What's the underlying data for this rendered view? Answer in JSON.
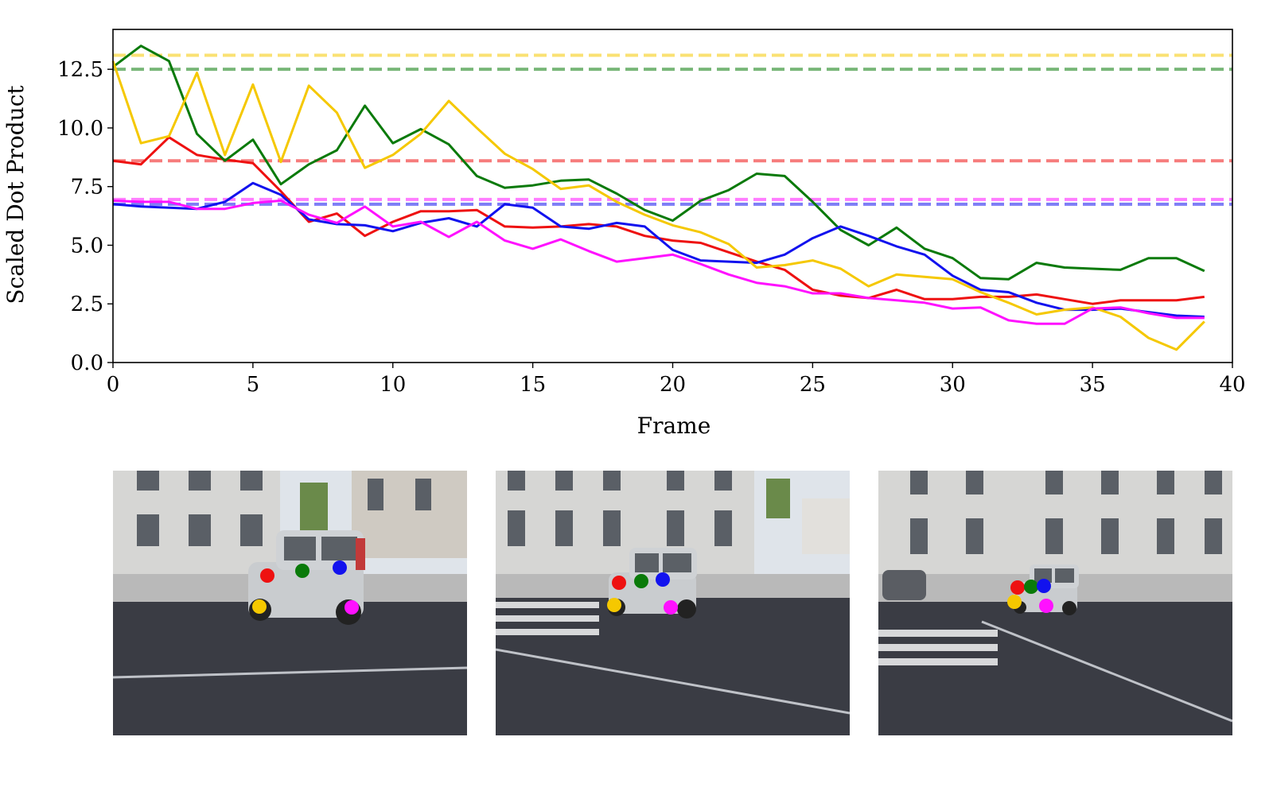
{
  "chart_data": {
    "type": "line",
    "title": "",
    "xlabel": "Frame",
    "ylabel": "Scaled Dot Product",
    "xlim": [
      0,
      40
    ],
    "ylim": [
      0,
      14.2
    ],
    "xticks": [
      0,
      5,
      10,
      15,
      20,
      25,
      30,
      35,
      40
    ],
    "xtick_labels": [
      "0",
      "5",
      "10",
      "15",
      "20",
      "25",
      "30",
      "35",
      "40"
    ],
    "yticks": [
      0,
      2.5,
      5,
      7.5,
      10,
      12.5
    ],
    "ytick_labels": [
      "0.0",
      "2.5",
      "5.0",
      "7.5",
      "10.0",
      "12.5"
    ],
    "grid": false,
    "x": [
      0,
      1,
      2,
      3,
      4,
      5,
      6,
      7,
      8,
      9,
      10,
      11,
      12,
      13,
      14,
      15,
      16,
      17,
      18,
      19,
      20,
      21,
      22,
      23,
      24,
      25,
      26,
      27,
      28,
      29,
      30,
      31,
      32,
      33,
      34,
      35,
      36,
      37,
      38,
      39
    ],
    "series": [
      {
        "name": "red",
        "color": "#ee1111",
        "values": [
          8.6,
          8.45,
          9.6,
          8.85,
          8.65,
          8.5,
          7.3,
          6.0,
          6.35,
          5.4,
          6.0,
          6.45,
          6.45,
          6.5,
          5.8,
          5.75,
          5.8,
          5.9,
          5.8,
          5.4,
          5.2,
          5.1,
          4.7,
          4.3,
          3.95,
          3.1,
          2.85,
          2.75,
          3.1,
          2.7,
          2.7,
          2.8,
          2.8,
          2.9,
          2.7,
          2.5,
          2.65,
          2.65,
          2.65,
          2.8
        ]
      },
      {
        "name": "green",
        "color": "#0a7a0a",
        "values": [
          12.6,
          13.5,
          12.85,
          9.75,
          8.6,
          9.5,
          7.6,
          8.45,
          9.05,
          10.95,
          9.35,
          9.95,
          9.3,
          7.95,
          7.45,
          7.55,
          7.75,
          7.8,
          7.2,
          6.5,
          6.05,
          6.9,
          7.35,
          8.05,
          7.95,
          6.85,
          5.65,
          5.0,
          5.75,
          4.85,
          4.45,
          3.6,
          3.55,
          4.25,
          4.05,
          4.0,
          3.95,
          4.45,
          4.45,
          3.9
        ]
      },
      {
        "name": "blue",
        "color": "#1212ee",
        "values": [
          6.75,
          6.65,
          6.6,
          6.55,
          6.85,
          7.65,
          7.15,
          6.1,
          5.9,
          5.85,
          5.6,
          5.95,
          6.15,
          5.8,
          6.75,
          6.6,
          5.8,
          5.7,
          5.95,
          5.8,
          4.8,
          4.35,
          4.3,
          4.25,
          4.6,
          5.3,
          5.8,
          5.4,
          4.95,
          4.6,
          3.7,
          3.1,
          3.0,
          2.55,
          2.25,
          2.25,
          2.3,
          2.15,
          2.0,
          1.95
        ]
      },
      {
        "name": "yellow",
        "color": "#f5c800",
        "values": [
          12.85,
          9.35,
          9.65,
          12.35,
          8.85,
          11.85,
          8.55,
          11.8,
          10.65,
          8.3,
          8.85,
          9.75,
          11.15,
          10.0,
          8.9,
          8.25,
          7.4,
          7.55,
          6.85,
          6.3,
          5.85,
          5.55,
          5.05,
          4.05,
          4.15,
          4.35,
          4.0,
          3.25,
          3.75,
          3.65,
          3.55,
          3.0,
          2.55,
          2.05,
          2.25,
          2.35,
          1.95,
          1.05,
          0.55,
          1.75
        ]
      },
      {
        "name": "magenta",
        "color": "#ff11ff",
        "values": [
          6.9,
          6.85,
          6.85,
          6.55,
          6.55,
          6.8,
          6.9,
          6.3,
          5.95,
          6.65,
          5.8,
          6.0,
          5.35,
          6.0,
          5.2,
          4.85,
          5.25,
          4.75,
          4.3,
          4.45,
          4.6,
          4.2,
          3.75,
          3.4,
          3.25,
          2.95,
          2.95,
          2.75,
          2.65,
          2.55,
          2.3,
          2.35,
          1.8,
          1.65,
          1.65,
          2.3,
          2.35,
          2.1,
          1.9,
          1.9
        ]
      }
    ],
    "reference_lines": [
      {
        "name": "yellow-baseline",
        "color": "#f5c800",
        "value": 13.1
      },
      {
        "name": "green-baseline",
        "color": "#0a7a0a",
        "value": 12.5
      },
      {
        "name": "red-baseline",
        "color": "#ee1111",
        "value": 8.6
      },
      {
        "name": "magenta-baseline",
        "color": "#ff11ff",
        "value": 6.95
      },
      {
        "name": "blue-baseline",
        "color": "#1212ee",
        "value": 6.75
      }
    ]
  },
  "frames": [
    {
      "name": "frame-early",
      "car_scale": 1.0
    },
    {
      "name": "frame-middle",
      "car_scale": 0.72
    },
    {
      "name": "frame-late",
      "car_scale": 0.5
    }
  ],
  "keypoint_colors": {
    "red": "#ee1111",
    "green": "#0a7a0a",
    "blue": "#1212ee",
    "yellow": "#f5c800",
    "magenta": "#ff11ff"
  }
}
